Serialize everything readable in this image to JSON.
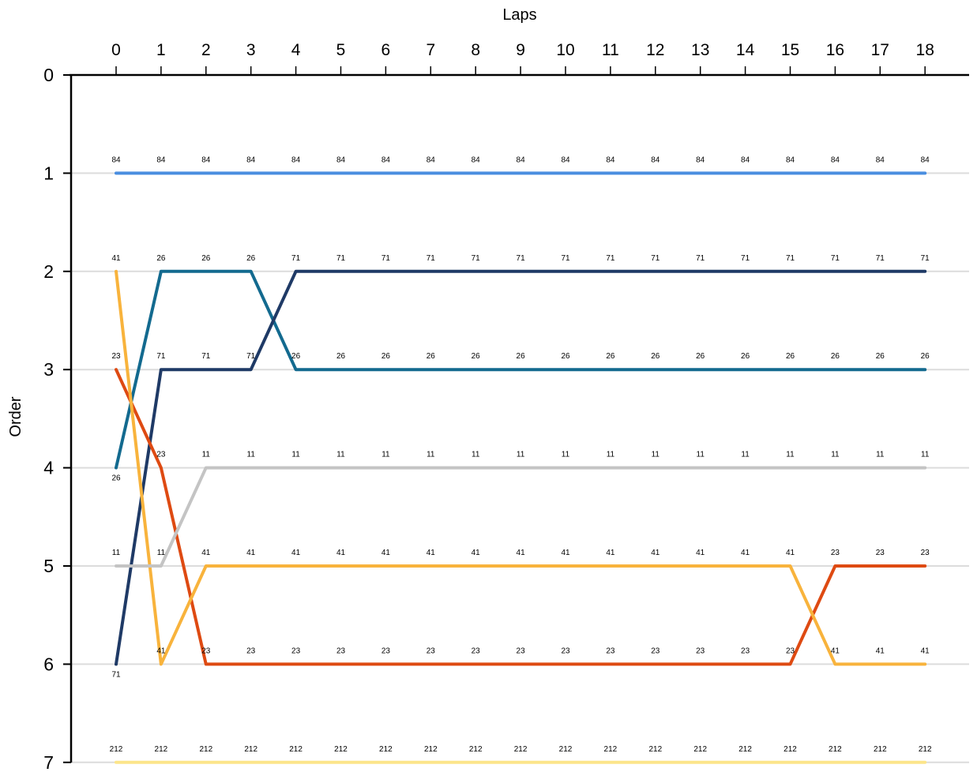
{
  "chart_data": {
    "type": "line",
    "xlabel": "Laps",
    "ylabel": "Order",
    "x": [
      0,
      1,
      2,
      3,
      4,
      5,
      6,
      7,
      8,
      9,
      10,
      11,
      12,
      13,
      14,
      15,
      16,
      17,
      18
    ],
    "xlim": [
      -1,
      19.5
    ],
    "ylim": [
      0,
      7
    ],
    "y_inverted": true,
    "x_axis_position": "top",
    "y_ticks": [
      0,
      1,
      2,
      3,
      4,
      5,
      6,
      7
    ],
    "grid": "horizontal",
    "series": [
      {
        "name": "84",
        "color": "#4a8ee0",
        "values": [
          1,
          1,
          1,
          1,
          1,
          1,
          1,
          1,
          1,
          1,
          1,
          1,
          1,
          1,
          1,
          1,
          1,
          1,
          1
        ]
      },
      {
        "name": "26",
        "color": "#136a8f",
        "values": [
          4,
          2,
          2,
          2,
          3,
          3,
          3,
          3,
          3,
          3,
          3,
          3,
          3,
          3,
          3,
          3,
          3,
          3,
          3
        ]
      },
      {
        "name": "71",
        "color": "#1f3a66",
        "values": [
          6,
          3,
          3,
          3,
          2,
          2,
          2,
          2,
          2,
          2,
          2,
          2,
          2,
          2,
          2,
          2,
          2,
          2,
          2
        ]
      },
      {
        "name": "23",
        "color": "#de4a12",
        "values": [
          3,
          4,
          6,
          6,
          6,
          6,
          6,
          6,
          6,
          6,
          6,
          6,
          6,
          6,
          6,
          6,
          5,
          5,
          5
        ]
      },
      {
        "name": "41",
        "color": "#f8b33c",
        "values": [
          2,
          6,
          5,
          5,
          5,
          5,
          5,
          5,
          5,
          5,
          5,
          5,
          5,
          5,
          5,
          5,
          6,
          6,
          6
        ]
      },
      {
        "name": "11",
        "color": "#c4c4c4",
        "values": [
          5,
          5,
          4,
          4,
          4,
          4,
          4,
          4,
          4,
          4,
          4,
          4,
          4,
          4,
          4,
          4,
          4,
          4,
          4
        ]
      },
      {
        "name": "212",
        "color": "#fce58a",
        "values": [
          7,
          7,
          7,
          7,
          7,
          7,
          7,
          7,
          7,
          7,
          7,
          7,
          7,
          7,
          7,
          7,
          7,
          7,
          7
        ]
      }
    ]
  }
}
